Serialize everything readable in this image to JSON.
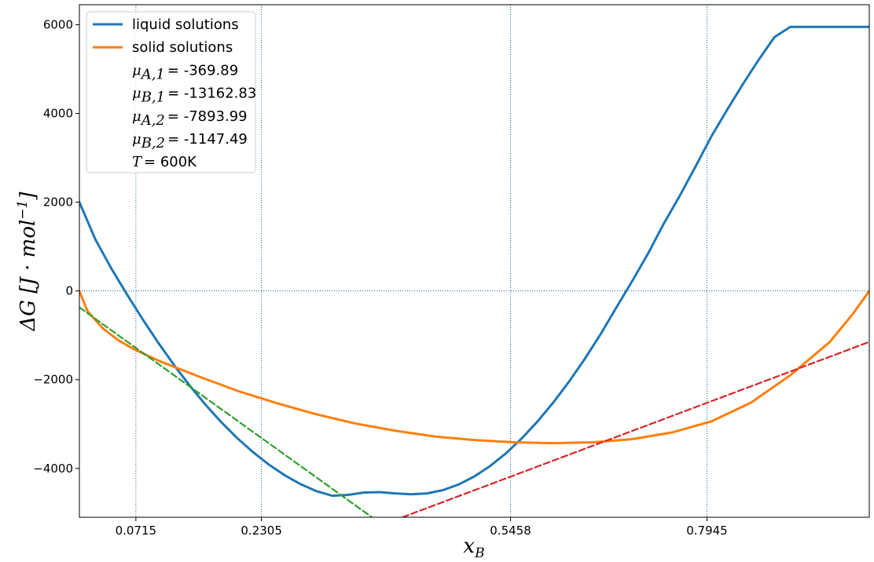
{
  "chart_data": {
    "type": "line",
    "xlabel": "x_B",
    "ylabel": "ΔG   [J · mol⁻¹]",
    "xlim": [
      0.0,
      1.0
    ],
    "ylim": [
      -5100,
      6450
    ],
    "x_ticks": [
      {
        "value": 0.0715,
        "label": "0.0715"
      },
      {
        "value": 0.2305,
        "label": "0.2305"
      },
      {
        "value": 0.5458,
        "label": "0.5458"
      },
      {
        "value": 0.7945,
        "label": "0.7945"
      }
    ],
    "y_ticks": [
      {
        "value": 6000,
        "label": "6000"
      },
      {
        "value": 4000,
        "label": "4000"
      },
      {
        "value": 2000,
        "label": "2000"
      },
      {
        "value": 0,
        "label": "0"
      },
      {
        "value": -2000,
        "label": "−2000"
      },
      {
        "value": -4000,
        "label": "−4000"
      }
    ],
    "grid": {
      "vertical_at": [
        0.0715,
        0.2305,
        0.5458,
        0.7945
      ],
      "horizontal_at": [
        0
      ],
      "style": "dotted"
    },
    "temperature_K": 600,
    "series": [
      {
        "name": "liquid solutions",
        "color": "#1f77b4",
        "style": "solid",
        "x": [
          0.0,
          0.02,
          0.04,
          0.06,
          0.08,
          0.1,
          0.12,
          0.14,
          0.16,
          0.18,
          0.2,
          0.22,
          0.24,
          0.26,
          0.28,
          0.3,
          0.32,
          0.34,
          0.36,
          0.38,
          0.4,
          0.42,
          0.44,
          0.46,
          0.48,
          0.5,
          0.52,
          0.54,
          0.56,
          0.58,
          0.6,
          0.62,
          0.64,
          0.66,
          0.68,
          0.7,
          0.72,
          0.74,
          0.76,
          0.78,
          0.8,
          0.82,
          0.84,
          0.86,
          0.88,
          0.9,
          0.92,
          0.94,
          0.96,
          0.98,
          1.0
        ],
        "y": [
          2000,
          1170,
          519,
          -71,
          -636,
          -1172,
          -1674,
          -2141,
          -2571,
          -2964,
          -3319,
          -3636,
          -3915,
          -4154,
          -4353,
          -4511,
          -4615,
          -4597,
          -4543,
          -4534,
          -4562,
          -4582,
          -4563,
          -4490,
          -4362,
          -4180,
          -3945,
          -3659,
          -3324,
          -2941,
          -2513,
          -2041,
          -1527,
          -970,
          -367,
          226,
          845,
          1522,
          2142,
          2802,
          3480,
          4080,
          4660,
          5210,
          5720,
          5950,
          5950,
          5950,
          5950,
          5950,
          5950
        ]
      },
      {
        "name": "solid solutions",
        "color": "#ff7f0e",
        "style": "solid",
        "x": [
          0.0,
          0.01,
          0.03,
          0.05,
          0.07,
          0.1,
          0.15,
          0.2,
          0.25,
          0.3,
          0.35,
          0.4,
          0.45,
          0.5,
          0.55,
          0.6,
          0.65,
          0.7,
          0.75,
          0.8,
          0.85,
          0.9,
          0.95,
          0.98,
          1.0
        ],
        "y": [
          0,
          -450,
          -850,
          -1120,
          -1320,
          -1570,
          -1920,
          -2250,
          -2530,
          -2780,
          -2990,
          -3150,
          -3280,
          -3360,
          -3410,
          -3430,
          -3410,
          -3340,
          -3190,
          -2940,
          -2520,
          -1900,
          -1150,
          -500,
          0
        ]
      },
      {
        "name": "",
        "color": "#2ca02c",
        "style": "dashed",
        "x": [
          0.0,
          0.37
        ],
        "y": [
          -370,
          -5095
        ]
      },
      {
        "name": "",
        "color": "#d62728",
        "style": "dashed",
        "x": [
          0.409,
          1.0
        ],
        "y": [
          -5100,
          -1148
        ]
      }
    ],
    "legend": {
      "position": "upper-left",
      "entries": [
        {
          "label": "liquid solutions",
          "color": "#1f77b4",
          "has_line": true
        },
        {
          "label": "solid solutions",
          "color": "#ff7f0e",
          "has_line": true
        },
        {
          "symbol": "μ",
          "sub": "A,1",
          "label": "= -369.89",
          "has_line": false
        },
        {
          "symbol": "μ",
          "sub": "B,1",
          "label": "= -13162.83",
          "has_line": false
        },
        {
          "symbol": "μ",
          "sub": "A,2",
          "label": "= -7893.99",
          "has_line": false
        },
        {
          "symbol": "μ",
          "sub": "B,2",
          "label": "= -1147.49",
          "has_line": false
        },
        {
          "symbol": "T",
          "sub": "",
          "label": "= 600K",
          "has_line": false
        }
      ]
    }
  }
}
